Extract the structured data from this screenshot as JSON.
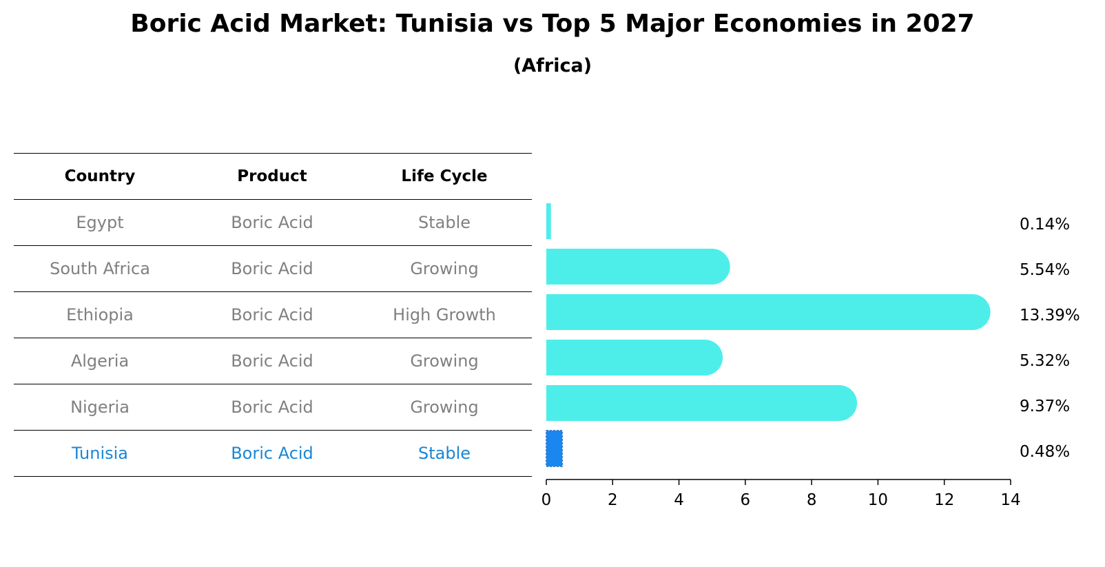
{
  "chart_data": {
    "type": "bar",
    "orientation": "horizontal",
    "title": "Boric Acid Market: Tunisia vs Top 5 Major Economies in 2027",
    "subtitle": "(Africa)",
    "table": {
      "headers": [
        "Country",
        "Product",
        "Life Cycle"
      ],
      "rows": [
        {
          "country": "Egypt",
          "product": "Boric Acid",
          "life_cycle": "Stable"
        },
        {
          "country": "South Africa",
          "product": "Boric Acid",
          "life_cycle": "Growing"
        },
        {
          "country": "Ethiopia",
          "product": "Boric Acid",
          "life_cycle": "High Growth"
        },
        {
          "country": "Algeria",
          "product": "Boric Acid",
          "life_cycle": "Growing"
        },
        {
          "country": "Nigeria",
          "product": "Boric Acid",
          "life_cycle": "Growing"
        },
        {
          "country": "Tunisia",
          "product": "Boric Acid",
          "life_cycle": "Stable"
        }
      ]
    },
    "categories": [
      "Egypt",
      "South Africa",
      "Ethiopia",
      "Algeria",
      "Nigeria",
      "Tunisia"
    ],
    "values": [
      0.14,
      5.54,
      13.39,
      5.32,
      9.37,
      0.48
    ],
    "value_labels": [
      "0.14%",
      "5.54%",
      "13.39%",
      "5.32%",
      "9.37%",
      "0.48%"
    ],
    "highlight": "Tunisia",
    "xlim": [
      0,
      14
    ],
    "xticks": [
      0,
      2,
      4,
      6,
      8,
      10,
      12,
      14
    ],
    "grid": false,
    "colors": {
      "bar": "#4deeea",
      "highlight_bar": "#1a87f0",
      "row_text": "#808080",
      "highlight_text": "#1a87d4"
    }
  }
}
